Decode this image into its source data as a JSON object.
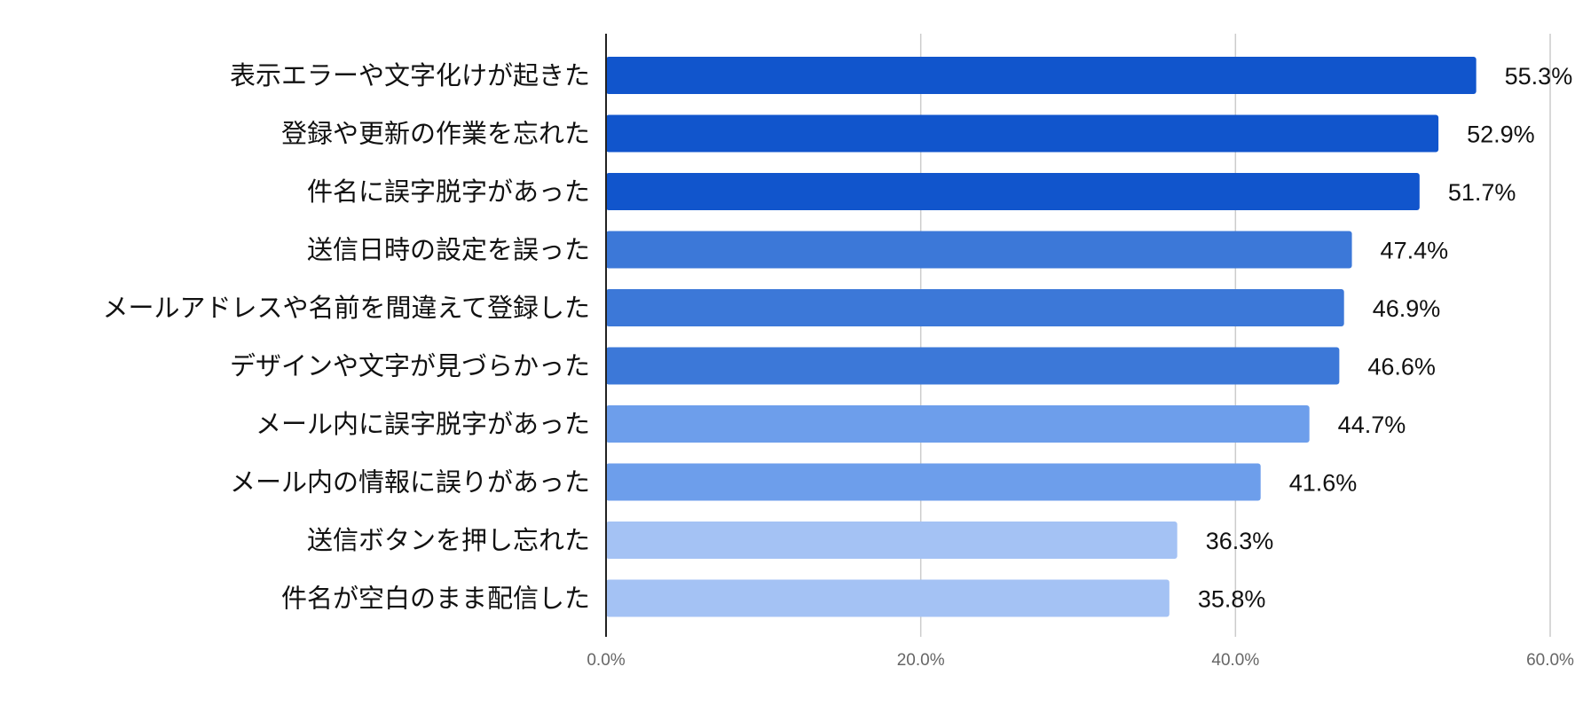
{
  "chart_data": {
    "type": "bar",
    "orientation": "horizontal",
    "categories": [
      "表示エラーや文字化けが起きた",
      "登録や更新の作業を忘れた",
      "件名に誤字脱字があった",
      "送信日時の設定を誤った",
      "メールアドレスや名前を間違えて登録した",
      "デザインや文字が見づらかった",
      "メール内に誤字脱字があった",
      "メール内の情報に誤りがあった",
      "送信ボタンを押し忘れた",
      "件名が空白のまま配信した"
    ],
    "values": [
      55.3,
      52.9,
      51.7,
      47.4,
      46.9,
      46.6,
      44.7,
      41.6,
      36.3,
      35.8
    ],
    "value_labels": [
      "55.3%",
      "52.9%",
      "51.7%",
      "47.4%",
      "46.9%",
      "46.6%",
      "44.7%",
      "41.6%",
      "36.3%",
      "35.8%"
    ],
    "bar_colors": [
      "#1155cc",
      "#1155cc",
      "#1155cc",
      "#3c78d8",
      "#3c78d8",
      "#3c78d8",
      "#6d9eeb",
      "#6d9eeb",
      "#a4c2f4",
      "#a4c2f4"
    ],
    "x_ticks": [
      "0.0%",
      "20.0%",
      "40.0%",
      "60.0%"
    ],
    "xlim": [
      0,
      60
    ],
    "grid": true,
    "legend": "none"
  }
}
